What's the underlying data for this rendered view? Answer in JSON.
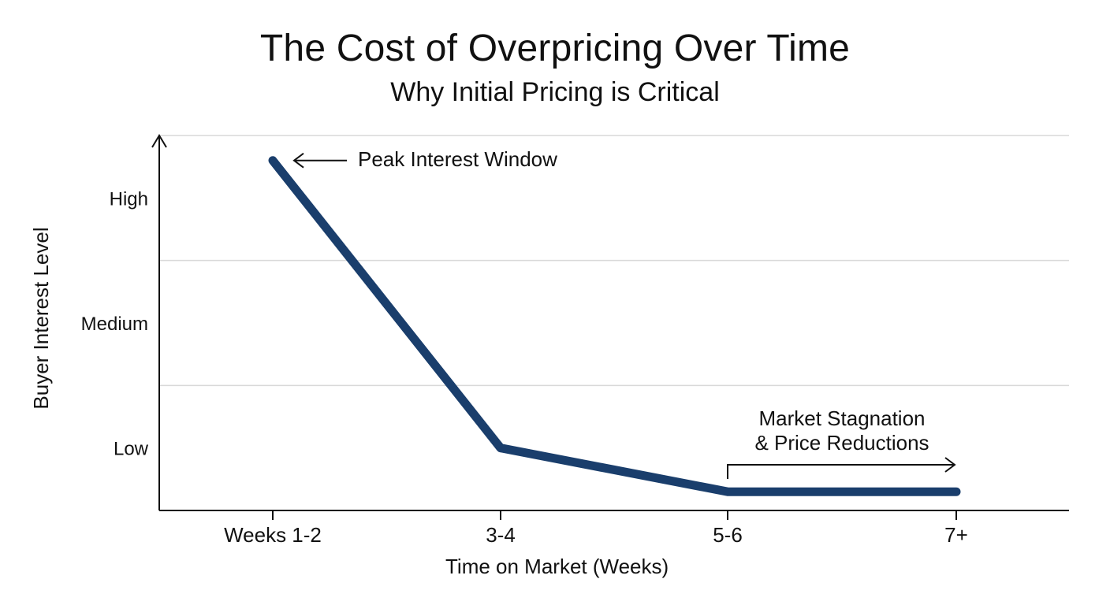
{
  "chart_data": {
    "type": "line",
    "title": "The Cost of Overpricing Over Time",
    "subtitle": "Why Initial Pricing is Critical",
    "xlabel": "Time on Market (Weeks)",
    "ylabel": "Buyer Interest Level",
    "categories": [
      "Weeks 1-2",
      "3-4",
      "5-6",
      "7+"
    ],
    "y_ticks": [
      {
        "label": "High",
        "value": 3
      },
      {
        "label": "Medium",
        "value": 2
      },
      {
        "label": "Low",
        "value": 1
      }
    ],
    "ylim": [
      0.5,
      3.5
    ],
    "grid": "horizontal",
    "series": [
      {
        "values": [
          3.3,
          1.0,
          0.65,
          0.65
        ],
        "color": "#1a3e6c"
      }
    ],
    "annotations": [
      {
        "text": "Peak Interest Window",
        "target": "Weeks 1-2"
      },
      {
        "text_lines": [
          "Market Stagnation",
          "& Price Reductions"
        ],
        "span": [
          "5-6",
          "7+"
        ]
      }
    ]
  }
}
